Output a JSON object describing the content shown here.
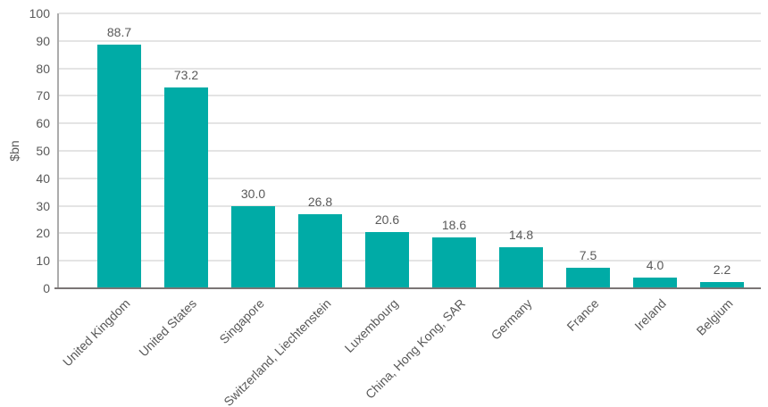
{
  "chart_data": {
    "type": "bar",
    "title": "",
    "xlabel": "",
    "ylabel": "$bn",
    "categories": [
      "United Kingdom",
      "United States",
      "Singapore",
      "Switzerland, Liechtenstein",
      "Luxembourg",
      "China, Hong Kong, SAR",
      "Germany",
      "France",
      "Ireland",
      "Belgium"
    ],
    "values": [
      88.7,
      73.2,
      30.0,
      26.8,
      20.6,
      18.6,
      14.8,
      7.5,
      4.0,
      2.2
    ],
    "value_labels": [
      "88.7",
      "73.2",
      "30.0",
      "26.8",
      "20.6",
      "18.6",
      "14.8",
      "7.5",
      "4.0",
      "2.2"
    ],
    "ylim": [
      0,
      100
    ],
    "yticks": [
      0,
      10,
      20,
      30,
      40,
      50,
      60,
      70,
      80,
      90,
      100
    ],
    "grid": "horizontal",
    "legend": "none",
    "colors": {
      "bar": "#00ABA6",
      "gridline": "#E4E4E4",
      "y_axis_line": "#ACACAC",
      "x_axis_line": "#7A7575",
      "text": "#595959"
    }
  }
}
